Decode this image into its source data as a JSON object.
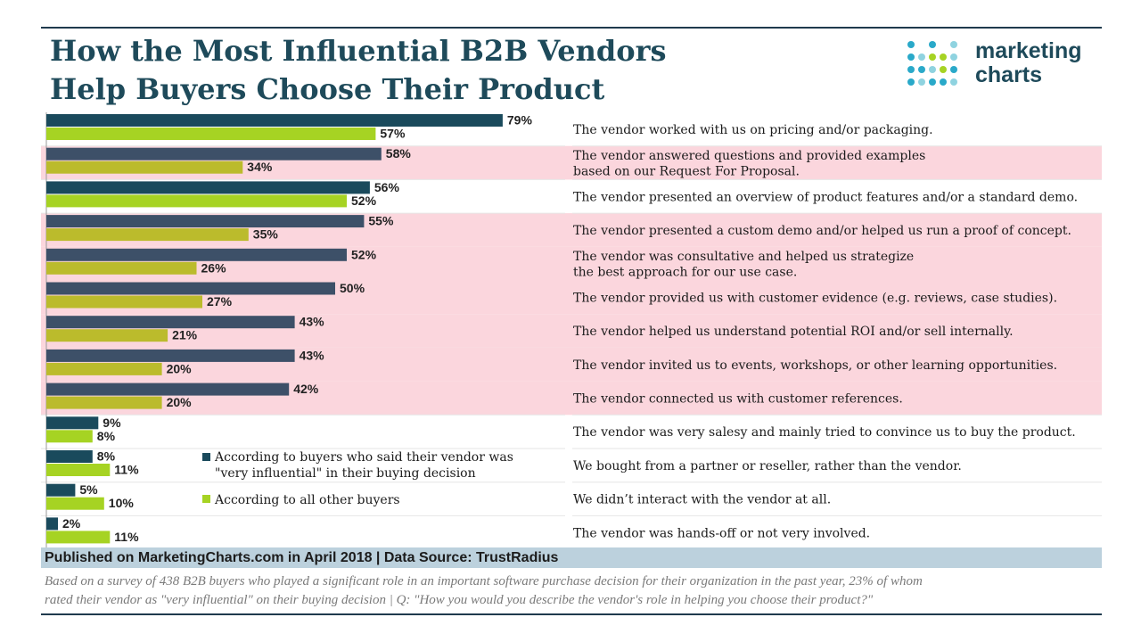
{
  "header": {
    "title_line1": "How the Most Influential B2B Vendors",
    "title_line2": "Help Buyers Choose Their Product",
    "logo_word1": "marketing",
    "logo_word2": "charts"
  },
  "legend": {
    "series1_line1": "According to buyers who said their vendor was",
    "series1_line2": "\"very influential\" in their buying decision",
    "series2": "According to all other buyers"
  },
  "footer": {
    "source": "Published on MarketingCharts.com in April 2018 | Data Source: TrustRadius",
    "note_line1": "Based on a survey of 438 B2B buyers who played a significant role in an important software purchase decision for their organization in the past year, 23% of whom",
    "note_line2": "rated their vendor as \"very influential\" on their buying decision | Q: \"How you would you describe the vendor's role in helping you choose their product?\""
  },
  "chart_data": {
    "type": "bar",
    "orientation": "horizontal",
    "title": "How the Most Influential B2B Vendors Help Buyers Choose Their Product",
    "value_format": "percent",
    "categories": [
      "The vendor worked with us on pricing and/or packaging.",
      "The vendor answered questions and provided examples based on our Request For Proposal.",
      "The vendor presented an overview of product features and/or a standard demo.",
      "The vendor presented a custom demo and/or helped us run a proof of concept.",
      "The vendor was consultative and helped us strategize the best approach for our use case.",
      "The vendor provided us with customer evidence (e.g. reviews, case studies).",
      "The vendor helped us understand potential ROI and/or sell internally.",
      "The vendor invited us to events, workshops, or other learning opportunities.",
      "The vendor connected us with customer references.",
      "The vendor was very salesy and mainly tried to convince us to buy the product.",
      "We bought from a partner or reseller, rather than the vendor.",
      "We didn’t interact with the vendor at all.",
      "The vendor was hands-off or not very involved."
    ],
    "category_lines": [
      [
        "The vendor worked with us on pricing and/or packaging."
      ],
      [
        "The vendor answered questions and provided examples",
        "based on our Request For Proposal."
      ],
      [
        "The vendor presented an overview of product features and/or a standard demo."
      ],
      [
        "The vendor presented a custom demo and/or helped us run a proof of concept."
      ],
      [
        "The vendor was consultative and helped us strategize",
        "the best approach for our use case."
      ],
      [
        "The vendor provided us with customer evidence (e.g. reviews, case studies)."
      ],
      [
        "The vendor helped us understand potential ROI and/or sell internally."
      ],
      [
        "The vendor invited us to events, workshops, or other learning opportunities."
      ],
      [
        "The vendor connected us with customer references."
      ],
      [
        "The vendor was very salesy and mainly tried to convince us to buy the product."
      ],
      [
        "We bought from a partner or reseller, rather than the vendor."
      ],
      [
        "We didn’t interact with the vendor at all."
      ],
      [
        "The vendor was hands-off or not very involved."
      ]
    ],
    "highlighted_rows": [
      1,
      3,
      4,
      5,
      6,
      7,
      8
    ],
    "series": [
      {
        "name": "According to buyers who said their vendor was \"very influential\" in their buying decision",
        "values": [
          79,
          58,
          56,
          55,
          52,
          50,
          43,
          43,
          42,
          9,
          8,
          5,
          2
        ],
        "colors": [
          "#1a4a5c",
          "#3d5068",
          "#1a4a5c",
          "#3d5068",
          "#3d5068",
          "#3d5068",
          "#3d5068",
          "#3d5068",
          "#3d5068",
          "#1a4a5c",
          "#1a4a5c",
          "#1a4a5c",
          "#1a4a5c"
        ]
      },
      {
        "name": "According to all other buyers",
        "values": [
          57,
          34,
          52,
          35,
          26,
          27,
          21,
          20,
          20,
          8,
          11,
          10,
          11
        ],
        "colors": [
          "#a6d323",
          "#bbbb2c",
          "#a6d323",
          "#bbbb2c",
          "#bbbb2c",
          "#bbbb2c",
          "#bbbb2c",
          "#bbbb2c",
          "#bbbb2c",
          "#a6d323",
          "#a6d323",
          "#a6d323",
          "#a6d323"
        ]
      }
    ],
    "legend_colors": [
      "#1a4a5c",
      "#a6d323"
    ],
    "highlight_color": "#fbd6dd",
    "xlim": [
      0,
      100
    ],
    "grid": false
  }
}
